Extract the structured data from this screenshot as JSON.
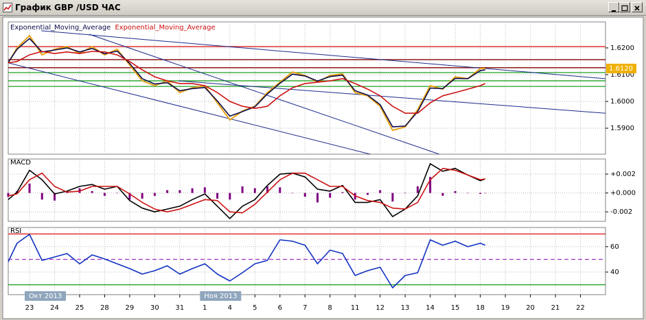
{
  "window": {
    "title": "График GBP /USD ЧАС"
  },
  "chart_data": [
    {
      "type": "line",
      "legend": "top-left",
      "grid": true,
      "xlim": [
        -0.85,
        23
      ],
      "ylim": [
        1.5803,
        1.6297
      ],
      "yticks": [
        {
          "value": 1.59,
          "label": "1.5900"
        },
        {
          "value": 1.6,
          "label": "1.6000"
        },
        {
          "value": 1.61,
          "label": "1.6100"
        },
        {
          "value": 1.62,
          "label": "1.6200"
        }
      ],
      "x": [
        -0.85,
        -0.5,
        0,
        0.5,
        1,
        1.5,
        2,
        2.5,
        3,
        3.5,
        4,
        4.5,
        5,
        5.5,
        6,
        6.5,
        7,
        7.5,
        8,
        8.5,
        9,
        9.5,
        10,
        10.5,
        11,
        11.5,
        12,
        12.5,
        13,
        13.5,
        14,
        14.5,
        15,
        15.5,
        16,
        16.5,
        17,
        17.5,
        18,
        18.2
      ],
      "series": [
        {
          "color": "#e8a317",
          "values": [
            1.6144,
            1.62,
            1.6246,
            1.6174,
            1.6195,
            1.6205,
            1.6179,
            1.6205,
            1.6174,
            1.6195,
            1.6136,
            1.6077,
            1.6059,
            1.6077,
            1.6033,
            1.6051,
            1.6059,
            1.5995,
            1.5931,
            1.5964,
            1.5982,
            1.6033,
            1.6072,
            1.611,
            1.6097,
            1.6072,
            1.6097,
            1.6103,
            1.6033,
            1.6021,
            1.5982,
            1.5892,
            1.5905,
            1.5969,
            1.6059,
            1.6046,
            1.6092,
            1.6085,
            1.6123,
            1.6123
          ]
        },
        {
          "name": "Exponential_Moving_Average",
          "color": "#0b0b4b",
          "values": [
            1.6146,
            1.6195,
            1.6235,
            1.6185,
            1.6192,
            1.62,
            1.6185,
            1.6198,
            1.6178,
            1.6188,
            1.6142,
            1.6085,
            1.6065,
            1.607,
            1.604,
            1.6048,
            1.6052,
            1.6002,
            1.5945,
            1.5962,
            1.598,
            1.6028,
            1.6068,
            1.6102,
            1.6095,
            1.6076,
            1.6093,
            1.6098,
            1.604,
            1.6024,
            1.5988,
            1.5905,
            1.5908,
            1.5962,
            1.605,
            1.6048,
            1.6086,
            1.6085,
            1.6115,
            1.6118
          ]
        },
        {
          "name": "Exponential_Moving_Average",
          "color": "#cc1010",
          "values": [
            1.6144,
            1.6149,
            1.6174,
            1.6187,
            1.6179,
            1.6185,
            1.6179,
            1.6187,
            1.6185,
            1.6174,
            1.6149,
            1.6118,
            1.6092,
            1.6077,
            1.6067,
            1.6067,
            1.6059,
            1.6033,
            1.6,
            1.5982,
            1.5974,
            1.5982,
            1.6021,
            1.6051,
            1.6067,
            1.6072,
            1.6077,
            1.6085,
            1.6067,
            1.6046,
            1.6021,
            1.5982,
            1.5956,
            1.5956,
            1.5995,
            1.6021,
            1.6033,
            1.6046,
            1.6059,
            1.6067
          ]
        }
      ],
      "hlines": [
        {
          "value": 1.6205,
          "color": "#e02020"
        },
        {
          "value": 1.6156,
          "color": "#800000"
        },
        {
          "value": 1.6126,
          "color": "#800000"
        },
        {
          "value": 1.6108,
          "color": "#20a020"
        },
        {
          "value": 1.6077,
          "color": "#20a020"
        },
        {
          "value": 1.6056,
          "color": "#20a020"
        }
      ],
      "trendlines": [
        {
          "color": "#1a2a8a",
          "x": [
            0.47,
            23
          ],
          "y": [
            1.6264,
            1.6085
          ]
        },
        {
          "color": "#1a2a8a",
          "x": [
            -0.85,
            13.6
          ],
          "y": [
            1.6144,
            1.5803
          ]
        },
        {
          "color": "#1a2a8a",
          "x": [
            2.38,
            16.36
          ],
          "y": [
            1.6251,
            1.5803
          ]
        },
        {
          "color": "#1a2a8a",
          "x": [
            5.95,
            23
          ],
          "y": [
            1.6077,
            1.5956
          ]
        }
      ],
      "price_tag": "1.6120",
      "price_tag_color": "#f0b000"
    },
    {
      "type": "line",
      "title": "MACD",
      "grid": true,
      "xlim": [
        -0.85,
        23
      ],
      "ylim": [
        -0.003,
        0.0036
      ],
      "yticks": [
        {
          "value": -0.002,
          "label": "-0.002"
        },
        {
          "value": 0,
          "label": "+0.000"
        },
        {
          "value": 0.002,
          "label": "+0.002"
        }
      ],
      "x": [
        -0.85,
        -0.5,
        0,
        0.5,
        1,
        1.5,
        2,
        2.5,
        3,
        3.5,
        4,
        4.5,
        5,
        5.5,
        6,
        6.5,
        7,
        7.5,
        8,
        8.5,
        9,
        9.5,
        10,
        10.5,
        11,
        11.5,
        12,
        12.5,
        13,
        13.5,
        14,
        14.5,
        15,
        15.5,
        16,
        16.5,
        17,
        17.5,
        18,
        18.2
      ],
      "histogram": {
        "color": "#800080",
        "values": [
          -0.0004,
          0.0002,
          0.001,
          -0.0007,
          -0.0008,
          0.0001,
          0.0005,
          0.0002,
          -0.0003,
          0,
          -0.0007,
          -0.0006,
          -0.0003,
          0.0003,
          0.0003,
          0.0005,
          0.0006,
          -0.0006,
          -0.0007,
          0.0007,
          0.0005,
          0.0007,
          0.0006,
          0,
          -0.0004,
          -0.001,
          -0.0005,
          0.0001,
          -0.0007,
          -0.0002,
          0.0003,
          -0.0009,
          0,
          0.0007,
          0.0017,
          -0.0003,
          0.0002,
          0,
          -0.0001,
          0
        ]
      },
      "series": [
        {
          "color": "#000000",
          "values": [
            -0.0007,
            0.0001,
            0.0024,
            0.0014,
            -0.0001,
            0.0002,
            0.0007,
            0.0009,
            0.0004,
            0.0007,
            -0.0008,
            -0.0016,
            -0.002,
            -0.0017,
            -0.0014,
            -0.0007,
            -0.0001,
            -0.0014,
            -0.0027,
            -0.0014,
            -0.0007,
            0.0008,
            0.002,
            0.0021,
            0.0017,
            0.0004,
            0.0002,
            0.0008,
            -0.001,
            -0.001,
            -0.0007,
            -0.0025,
            -0.0017,
            -0.0003,
            0.0031,
            0.0023,
            0.0026,
            0.0019,
            0.0013,
            0.0015
          ]
        },
        {
          "color": "#cc1010",
          "values": [
            -0.0003,
            -0.0001,
            0.0014,
            0.0021,
            0.0007,
            0.0001,
            0.0002,
            0.0007,
            0.0007,
            0.0007,
            -0.0001,
            -0.001,
            -0.0017,
            -0.002,
            -0.0017,
            -0.0012,
            -0.0007,
            -0.0008,
            -0.002,
            -0.0021,
            -0.0012,
            0.0001,
            0.0014,
            0.0021,
            0.0021,
            0.0014,
            0.0007,
            0.0007,
            -0.0003,
            -0.0008,
            -0.001,
            -0.0016,
            -0.0017,
            -0.001,
            0.0014,
            0.0026,
            0.0024,
            0.0019,
            0.0014,
            0.0015
          ]
        }
      ]
    },
    {
      "type": "line",
      "title": "RSI",
      "grid": true,
      "xlim": [
        -0.85,
        23
      ],
      "ylim": [
        22.2,
        75.1
      ],
      "yticks": [
        40,
        60
      ],
      "xticks": [
        {
          "value": 0,
          "label": "23"
        },
        {
          "value": 1,
          "label": "24"
        },
        {
          "value": 2,
          "label": "25"
        },
        {
          "value": 3,
          "label": "28"
        },
        {
          "value": 4,
          "label": "29"
        },
        {
          "value": 5,
          "label": "30"
        },
        {
          "value": 6,
          "label": "31"
        },
        {
          "value": 7,
          "label": "1"
        },
        {
          "value": 8,
          "label": "4"
        },
        {
          "value": 9,
          "label": "5"
        },
        {
          "value": 10,
          "label": "6"
        },
        {
          "value": 11,
          "label": "7"
        },
        {
          "value": 12,
          "label": "8"
        },
        {
          "value": 13,
          "label": "11"
        },
        {
          "value": 14,
          "label": "12"
        },
        {
          "value": 15,
          "label": "13"
        },
        {
          "value": 16,
          "label": "14"
        },
        {
          "value": 17,
          "label": "15"
        },
        {
          "value": 18,
          "label": "18"
        },
        {
          "value": 19,
          "label": "19"
        },
        {
          "value": 20,
          "label": "20"
        },
        {
          "value": 21,
          "label": "21"
        },
        {
          "value": 22,
          "label": "22"
        }
      ],
      "month_labels": [
        {
          "value": 0,
          "label": "Окт 2013"
        },
        {
          "value": 7,
          "label": "Ноя 2013"
        }
      ],
      "x": [
        -0.85,
        -0.5,
        0,
        0.5,
        1,
        1.5,
        2,
        2.5,
        3,
        3.5,
        4,
        4.5,
        5,
        5.5,
        6,
        6.5,
        7,
        7.5,
        8,
        8.5,
        9,
        9.5,
        10,
        10.5,
        11,
        11.5,
        12,
        12.5,
        13,
        13.5,
        14,
        14.5,
        15,
        15.5,
        16,
        16.5,
        17,
        17.5,
        18,
        18.2
      ],
      "series": [
        {
          "color": "#1030c0",
          "values": [
            48.1,
            62.7,
            69.7,
            49.2,
            51.9,
            54.6,
            46.5,
            53.5,
            50.3,
            46.5,
            42.7,
            38.4,
            41.1,
            44.9,
            38.4,
            42.7,
            46.5,
            38.4,
            33.0,
            39.5,
            46.5,
            49.2,
            65.4,
            64.3,
            61.1,
            46.5,
            57.3,
            54.6,
            37.3,
            41.1,
            43.8,
            27.6,
            37.3,
            39.5,
            65.4,
            61.1,
            64.3,
            60.0,
            62.7,
            61.1
          ]
        }
      ],
      "hlines": [
        {
          "value": 70,
          "color": "#e02020"
        },
        {
          "value": 50,
          "color": "#a030c0",
          "dashed": true
        },
        {
          "value": 30,
          "color": "#20a020"
        }
      ]
    }
  ]
}
